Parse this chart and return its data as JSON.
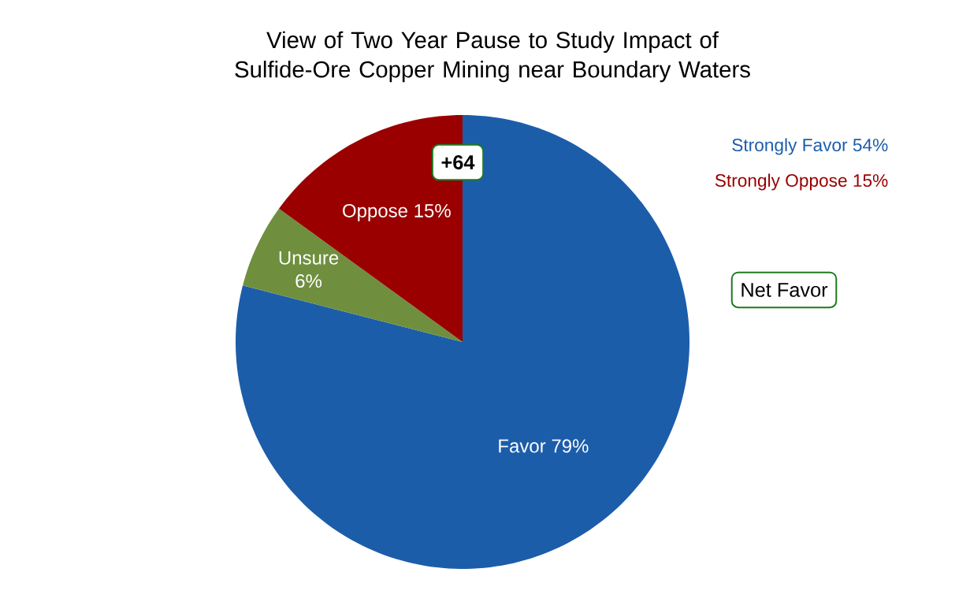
{
  "chart_data": {
    "type": "pie",
    "title": "View of Two Year Pause to Study Impact of Sulfide-Ore Copper Mining near Boundary Waters",
    "categories": [
      "Favor",
      "Unsure",
      "Oppose"
    ],
    "values": [
      79,
      6,
      15
    ],
    "value_labels": [
      "79%",
      "6%",
      "15%"
    ],
    "colors": [
      "#1c5daa",
      "#6f8f3f",
      "#9a0000"
    ],
    "annotations": [
      "Strongly Favor 54%",
      "Strongly Oppose 15%",
      "+64",
      "Net Favor"
    ]
  }
}
